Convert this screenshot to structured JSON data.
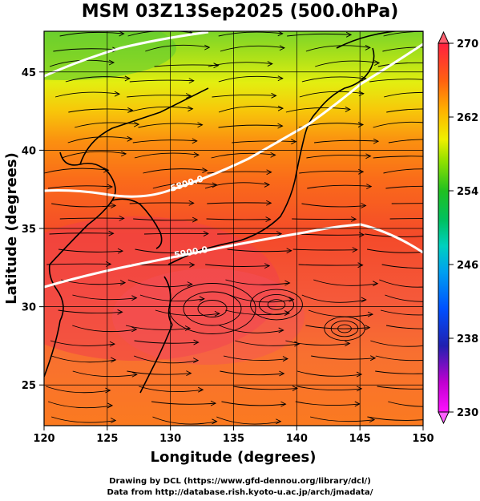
{
  "title": "MSM 03Z13Sep2025 (500.0hPa)",
  "x_axis": {
    "label": "Longitude (degrees)",
    "ticks": [
      "120",
      "125",
      "130",
      "135",
      "140",
      "145",
      "150"
    ],
    "range": [
      120,
      150
    ]
  },
  "y_axis": {
    "label": "Latitude  (degrees)",
    "ticks": [
      "25",
      "30",
      "35",
      "40",
      "45"
    ],
    "range": [
      22.4,
      47.6
    ]
  },
  "colorbar": {
    "ticks": [
      "230",
      "238",
      "246",
      "254",
      "262",
      "270"
    ],
    "range": [
      230,
      270
    ],
    "colors": [
      "#ff10ff",
      "#c000d0",
      "#2030c0",
      "#0050ff",
      "#00c0e0",
      "#00d0a0",
      "#00c040",
      "#40d000",
      "#a0e000",
      "#f0f000",
      "#ffb000",
      "#ff6010",
      "#ff3030",
      "#ff2040"
    ]
  },
  "contours": [
    {
      "label": "5800.0"
    },
    {
      "label": "5900.0"
    }
  ],
  "credits": {
    "line1": "Drawing by DCL (https://www.gfd-dennou.org/library/dcl/)",
    "line2": "Data from http://database.rish.kyoto-u.ac.jp/arch/jmadata/"
  },
  "colors": {
    "land_line": "#000000",
    "contour": "#ffffff"
  }
}
